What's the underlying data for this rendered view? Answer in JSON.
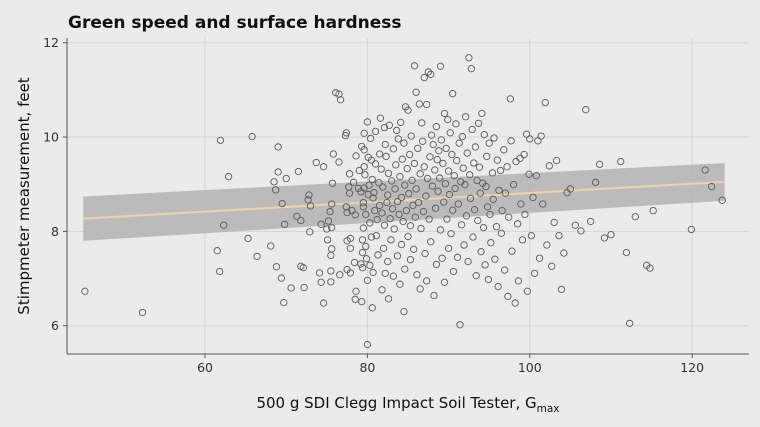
{
  "chart_data": {
    "type": "scatter",
    "title": "Green speed and surface hardness",
    "xlabel": "500 g SDI Clegg Impact Soil Tester, G",
    "xlabel_subscript": "max",
    "ylabel": "Stimpmeter measurement, feet",
    "xlim": [
      43,
      127
    ],
    "ylim": [
      5.4,
      12.1
    ],
    "x_ticks": [
      60,
      80,
      100,
      120
    ],
    "y_ticks": [
      6,
      8,
      10,
      12
    ],
    "grid": true,
    "trend": {
      "x": [
        45,
        124
      ],
      "y": [
        8.27,
        9.05
      ],
      "ci_start": [
        7.8,
        8.74
      ],
      "ci_end": [
        8.65,
        9.45
      ]
    },
    "colors": {
      "background": "#ebebeb",
      "grid": "#d6d6d6",
      "point": "#5a5a5a",
      "trend": "#f0d3a3",
      "ci": "#b3b3b3"
    },
    "points": [
      {
        "x": 45.2,
        "y": 6.73
      },
      {
        "x": 52.3,
        "y": 6.28
      },
      {
        "x": 61.5,
        "y": 7.59
      },
      {
        "x": 61.8,
        "y": 7.15
      },
      {
        "x": 61.9,
        "y": 9.93
      },
      {
        "x": 62.3,
        "y": 8.13
      },
      {
        "x": 62.9,
        "y": 9.16
      },
      {
        "x": 65.3,
        "y": 7.85
      },
      {
        "x": 65.8,
        "y": 10.01
      },
      {
        "x": 66.4,
        "y": 7.47
      },
      {
        "x": 68.1,
        "y": 7.69
      },
      {
        "x": 68.5,
        "y": 9.05
      },
      {
        "x": 68.7,
        "y": 8.88
      },
      {
        "x": 68.8,
        "y": 7.25
      },
      {
        "x": 69.0,
        "y": 9.79
      },
      {
        "x": 69.0,
        "y": 9.26
      },
      {
        "x": 69.4,
        "y": 7.01
      },
      {
        "x": 69.5,
        "y": 8.59
      },
      {
        "x": 69.7,
        "y": 6.49
      },
      {
        "x": 69.8,
        "y": 8.15
      },
      {
        "x": 70.0,
        "y": 9.12
      },
      {
        "x": 70.6,
        "y": 6.8
      },
      {
        "x": 71.3,
        "y": 8.32
      },
      {
        "x": 71.5,
        "y": 9.27
      },
      {
        "x": 71.8,
        "y": 8.23
      },
      {
        "x": 71.8,
        "y": 7.26
      },
      {
        "x": 72.1,
        "y": 7.23
      },
      {
        "x": 72.2,
        "y": 6.81
      },
      {
        "x": 72.7,
        "y": 8.67
      },
      {
        "x": 72.8,
        "y": 8.77
      },
      {
        "x": 72.9,
        "y": 7.99
      },
      {
        "x": 73.0,
        "y": 8.54
      },
      {
        "x": 73.7,
        "y": 9.46
      },
      {
        "x": 74.1,
        "y": 7.12
      },
      {
        "x": 74.3,
        "y": 8.15
      },
      {
        "x": 74.3,
        "y": 6.92
      },
      {
        "x": 74.6,
        "y": 9.37
      },
      {
        "x": 74.6,
        "y": 6.48
      },
      {
        "x": 75.0,
        "y": 8.05
      },
      {
        "x": 75.1,
        "y": 7.82
      },
      {
        "x": 75.2,
        "y": 8.22
      },
      {
        "x": 75.4,
        "y": 8.42
      },
      {
        "x": 75.5,
        "y": 7.49
      },
      {
        "x": 75.5,
        "y": 7.16
      },
      {
        "x": 75.5,
        "y": 6.93
      },
      {
        "x": 75.6,
        "y": 8.58
      },
      {
        "x": 75.6,
        "y": 8.08
      },
      {
        "x": 75.6,
        "y": 7.63
      },
      {
        "x": 75.7,
        "y": 9.02
      },
      {
        "x": 75.8,
        "y": 9.64
      },
      {
        "x": 76.1,
        "y": 10.94
      },
      {
        "x": 76.5,
        "y": 10.91
      },
      {
        "x": 76.5,
        "y": 9.47
      },
      {
        "x": 76.6,
        "y": 7.08
      },
      {
        "x": 76.7,
        "y": 10.79
      },
      {
        "x": 77.3,
        "y": 10.03
      },
      {
        "x": 77.4,
        "y": 10.09
      },
      {
        "x": 77.4,
        "y": 8.52
      },
      {
        "x": 77.5,
        "y": 7.8
      },
      {
        "x": 77.5,
        "y": 8.4
      },
      {
        "x": 77.5,
        "y": 7.19
      },
      {
        "x": 77.7,
        "y": 8.94
      },
      {
        "x": 77.8,
        "y": 9.22
      },
      {
        "x": 77.8,
        "y": 8.81
      },
      {
        "x": 77.9,
        "y": 7.85
      },
      {
        "x": 77.9,
        "y": 7.64
      },
      {
        "x": 77.9,
        "y": 7.12
      },
      {
        "x": 78.1,
        "y": 8.44
      },
      {
        "x": 78.3,
        "y": 9.04
      },
      {
        "x": 78.4,
        "y": 7.34
      },
      {
        "x": 78.5,
        "y": 8.35
      },
      {
        "x": 78.5,
        "y": 6.56
      },
      {
        "x": 78.6,
        "y": 9.6
      },
      {
        "x": 78.6,
        "y": 6.73
      },
      {
        "x": 78.9,
        "y": 8.91
      },
      {
        "x": 79.0,
        "y": 9.29
      },
      {
        "x": 79.2,
        "y": 8.84
      },
      {
        "x": 79.2,
        "y": 7.31
      },
      {
        "x": 79.3,
        "y": 9.8
      },
      {
        "x": 79.3,
        "y": 6.51
      },
      {
        "x": 79.4,
        "y": 7.82
      },
      {
        "x": 79.4,
        "y": 7.55
      },
      {
        "x": 79.4,
        "y": 7.23
      },
      {
        "x": 79.5,
        "y": 8.61
      },
      {
        "x": 79.5,
        "y": 8.52
      },
      {
        "x": 79.5,
        "y": 8.07
      },
      {
        "x": 79.6,
        "y": 10.08
      },
      {
        "x": 79.6,
        "y": 9.73
      },
      {
        "x": 79.6,
        "y": 9.37
      },
      {
        "x": 79.6,
        "y": 8.92
      },
      {
        "x": 79.7,
        "y": 9.2
      },
      {
        "x": 79.8,
        "y": 8.36
      },
      {
        "x": 79.8,
        "y": 7.68
      },
      {
        "x": 79.9,
        "y": 7.42
      },
      {
        "x": 80.0,
        "y": 10.32
      },
      {
        "x": 80.0,
        "y": 6.96
      },
      {
        "x": 80.0,
        "y": 5.6
      },
      {
        "x": 80.1,
        "y": 9.57
      },
      {
        "x": 80.1,
        "y": 8.78
      },
      {
        "x": 80.2,
        "y": 8.98
      },
      {
        "x": 80.3,
        "y": 8.18
      },
      {
        "x": 80.3,
        "y": 7.28
      },
      {
        "x": 80.4,
        "y": 9.97
      },
      {
        "x": 80.5,
        "y": 9.51
      },
      {
        "x": 80.5,
        "y": 7.88
      },
      {
        "x": 80.6,
        "y": 9.1
      },
      {
        "x": 80.6,
        "y": 6.38
      },
      {
        "x": 80.7,
        "y": 8.71
      },
      {
        "x": 80.7,
        "y": 7.13
      },
      {
        "x": 80.8,
        "y": 8.82
      },
      {
        "x": 80.9,
        "y": 8.44
      },
      {
        "x": 81.0,
        "y": 10.12
      },
      {
        "x": 81.0,
        "y": 9.43
      },
      {
        "x": 81.1,
        "y": 7.91
      },
      {
        "x": 81.2,
        "y": 8.25
      },
      {
        "x": 81.3,
        "y": 7.5
      },
      {
        "x": 81.4,
        "y": 9.03
      },
      {
        "x": 81.5,
        "y": 9.64
      },
      {
        "x": 81.5,
        "y": 8.55
      },
      {
        "x": 81.6,
        "y": 10.4
      },
      {
        "x": 81.7,
        "y": 9.32
      },
      {
        "x": 81.8,
        "y": 8.39
      },
      {
        "x": 81.8,
        "y": 6.76
      },
      {
        "x": 81.9,
        "y": 8.94
      },
      {
        "x": 82.0,
        "y": 7.64
      },
      {
        "x": 82.1,
        "y": 10.2
      },
      {
        "x": 82.1,
        "y": 8.13
      },
      {
        "x": 82.2,
        "y": 9.84
      },
      {
        "x": 82.2,
        "y": 7.11
      },
      {
        "x": 82.3,
        "y": 9.59
      },
      {
        "x": 82.4,
        "y": 8.61
      },
      {
        "x": 82.5,
        "y": 8.77
      },
      {
        "x": 82.5,
        "y": 7.36
      },
      {
        "x": 82.6,
        "y": 9.23
      },
      {
        "x": 82.6,
        "y": 6.57
      },
      {
        "x": 82.7,
        "y": 10.25
      },
      {
        "x": 82.8,
        "y": 8.27
      },
      {
        "x": 82.9,
        "y": 7.82
      },
      {
        "x": 83.0,
        "y": 9.07
      },
      {
        "x": 83.1,
        "y": 8.48
      },
      {
        "x": 83.2,
        "y": 9.75
      },
      {
        "x": 83.2,
        "y": 7.05
      },
      {
        "x": 83.3,
        "y": 8.05
      },
      {
        "x": 83.4,
        "y": 8.9
      },
      {
        "x": 83.5,
        "y": 9.41
      },
      {
        "x": 83.6,
        "y": 10.14
      },
      {
        "x": 83.7,
        "y": 8.63
      },
      {
        "x": 83.7,
        "y": 7.48
      },
      {
        "x": 83.8,
        "y": 9.96
      },
      {
        "x": 83.9,
        "y": 8.36
      },
      {
        "x": 84.0,
        "y": 9.16
      },
      {
        "x": 84.0,
        "y": 6.88
      },
      {
        "x": 84.1,
        "y": 10.31
      },
      {
        "x": 84.2,
        "y": 8.72
      },
      {
        "x": 84.2,
        "y": 7.72
      },
      {
        "x": 84.3,
        "y": 9.53
      },
      {
        "x": 84.4,
        "y": 8.21
      },
      {
        "x": 84.5,
        "y": 9.87
      },
      {
        "x": 84.5,
        "y": 6.3
      },
      {
        "x": 84.6,
        "y": 8.98
      },
      {
        "x": 84.6,
        "y": 7.2
      },
      {
        "x": 84.7,
        "y": 10.64
      },
      {
        "x": 84.8,
        "y": 8.44
      },
      {
        "x": 84.9,
        "y": 9.33
      },
      {
        "x": 85.0,
        "y": 7.89
      },
      {
        "x": 85.0,
        "y": 10.57
      },
      {
        "x": 85.1,
        "y": 8.8
      },
      {
        "x": 85.2,
        "y": 9.63
      },
      {
        "x": 85.3,
        "y": 8.12
      },
      {
        "x": 85.3,
        "y": 7.4
      },
      {
        "x": 85.4,
        "y": 10.02
      },
      {
        "x": 85.5,
        "y": 9.08
      },
      {
        "x": 85.6,
        "y": 8.55
      },
      {
        "x": 85.7,
        "y": 7.62
      },
      {
        "x": 85.8,
        "y": 9.44
      },
      {
        "x": 85.8,
        "y": 11.51
      },
      {
        "x": 85.9,
        "y": 8.3
      },
      {
        "x": 86.0,
        "y": 10.95
      },
      {
        "x": 86.0,
        "y": 8.9
      },
      {
        "x": 86.1,
        "y": 7.08
      },
      {
        "x": 86.2,
        "y": 9.76
      },
      {
        "x": 86.3,
        "y": 8.61
      },
      {
        "x": 86.4,
        "y": 10.7
      },
      {
        "x": 86.5,
        "y": 9.22
      },
      {
        "x": 86.5,
        "y": 6.78
      },
      {
        "x": 86.6,
        "y": 8.06
      },
      {
        "x": 86.7,
        "y": 10.3
      },
      {
        "x": 86.8,
        "y": 9.91
      },
      {
        "x": 86.9,
        "y": 8.42
      },
      {
        "x": 87.0,
        "y": 11.26
      },
      {
        "x": 87.0,
        "y": 9.37
      },
      {
        "x": 87.1,
        "y": 7.53
      },
      {
        "x": 87.2,
        "y": 8.75
      },
      {
        "x": 87.3,
        "y": 10.69
      },
      {
        "x": 87.3,
        "y": 6.95
      },
      {
        "x": 87.4,
        "y": 9.12
      },
      {
        "x": 87.5,
        "y": 11.38
      },
      {
        "x": 87.6,
        "y": 8.26
      },
      {
        "x": 87.7,
        "y": 9.58
      },
      {
        "x": 87.8,
        "y": 11.33
      },
      {
        "x": 87.8,
        "y": 7.78
      },
      {
        "x": 87.9,
        "y": 10.04
      },
      {
        "x": 88.0,
        "y": 8.96
      },
      {
        "x": 88.1,
        "y": 9.84
      },
      {
        "x": 88.2,
        "y": 6.64
      },
      {
        "x": 88.3,
        "y": 9.3
      },
      {
        "x": 88.4,
        "y": 8.49
      },
      {
        "x": 88.5,
        "y": 10.22
      },
      {
        "x": 88.5,
        "y": 7.3
      },
      {
        "x": 88.6,
        "y": 9.52
      },
      {
        "x": 88.7,
        "y": 8.85
      },
      {
        "x": 88.8,
        "y": 9.71
      },
      {
        "x": 88.9,
        "y": 9.13
      },
      {
        "x": 89.0,
        "y": 11.5
      },
      {
        "x": 89.0,
        "y": 8.03
      },
      {
        "x": 89.1,
        "y": 9.94
      },
      {
        "x": 89.2,
        "y": 7.43
      },
      {
        "x": 89.3,
        "y": 9.44
      },
      {
        "x": 89.4,
        "y": 8.62
      },
      {
        "x": 89.5,
        "y": 10.5
      },
      {
        "x": 89.5,
        "y": 6.92
      },
      {
        "x": 89.6,
        "y": 9.01
      },
      {
        "x": 89.7,
        "y": 9.76
      },
      {
        "x": 89.8,
        "y": 8.26
      },
      {
        "x": 89.9,
        "y": 10.37
      },
      {
        "x": 90.0,
        "y": 9.28
      },
      {
        "x": 90.0,
        "y": 7.64
      },
      {
        "x": 90.1,
        "y": 8.78
      },
      {
        "x": 90.2,
        "y": 10.09
      },
      {
        "x": 90.3,
        "y": 7.95
      },
      {
        "x": 90.4,
        "y": 9.63
      },
      {
        "x": 90.5,
        "y": 10.92
      },
      {
        "x": 90.5,
        "y": 8.45
      },
      {
        "x": 90.6,
        "y": 7.15
      },
      {
        "x": 90.7,
        "y": 9.18
      },
      {
        "x": 90.8,
        "y": 8.91
      },
      {
        "x": 90.9,
        "y": 10.28
      },
      {
        "x": 91.0,
        "y": 9.5
      },
      {
        "x": 91.1,
        "y": 7.45
      },
      {
        "x": 91.2,
        "y": 8.58
      },
      {
        "x": 91.3,
        "y": 9.87
      },
      {
        "x": 91.4,
        "y": 6.02
      },
      {
        "x": 91.5,
        "y": 9.05
      },
      {
        "x": 91.6,
        "y": 8.14
      },
      {
        "x": 91.7,
        "y": 10.01
      },
      {
        "x": 91.8,
        "y": 9.34
      },
      {
        "x": 91.9,
        "y": 7.71
      },
      {
        "x": 92.0,
        "y": 8.99
      },
      {
        "x": 92.1,
        "y": 10.43
      },
      {
        "x": 92.2,
        "y": 8.33
      },
      {
        "x": 92.3,
        "y": 9.66
      },
      {
        "x": 92.4,
        "y": 7.36
      },
      {
        "x": 92.5,
        "y": 11.68
      },
      {
        "x": 92.6,
        "y": 9.2
      },
      {
        "x": 92.7,
        "y": 8.7
      },
      {
        "x": 92.8,
        "y": 11.45
      },
      {
        "x": 92.9,
        "y": 10.16
      },
      {
        "x": 93.0,
        "y": 7.88
      },
      {
        "x": 93.1,
        "y": 9.45
      },
      {
        "x": 93.2,
        "y": 8.46
      },
      {
        "x": 93.3,
        "y": 9.79
      },
      {
        "x": 93.4,
        "y": 7.06
      },
      {
        "x": 93.5,
        "y": 9.08
      },
      {
        "x": 93.6,
        "y": 8.23
      },
      {
        "x": 93.7,
        "y": 10.29
      },
      {
        "x": 93.8,
        "y": 9.36
      },
      {
        "x": 93.9,
        "y": 8.81
      },
      {
        "x": 94.0,
        "y": 7.57
      },
      {
        "x": 94.1,
        "y": 10.5
      },
      {
        "x": 94.2,
        "y": 9.02
      },
      {
        "x": 94.3,
        "y": 8.08
      },
      {
        "x": 94.4,
        "y": 10.05
      },
      {
        "x": 94.5,
        "y": 7.29
      },
      {
        "x": 94.6,
        "y": 8.95
      },
      {
        "x": 94.7,
        "y": 9.59
      },
      {
        "x": 94.8,
        "y": 8.52
      },
      {
        "x": 94.9,
        "y": 6.98
      },
      {
        "x": 95.0,
        "y": 9.87
      },
      {
        "x": 95.1,
        "y": 8.36
      },
      {
        "x": 95.2,
        "y": 7.76
      },
      {
        "x": 95.4,
        "y": 9.24
      },
      {
        "x": 95.5,
        "y": 8.68
      },
      {
        "x": 95.6,
        "y": 9.98
      },
      {
        "x": 95.7,
        "y": 7.41
      },
      {
        "x": 95.9,
        "y": 8.1
      },
      {
        "x": 96.0,
        "y": 9.51
      },
      {
        "x": 96.1,
        "y": 6.83
      },
      {
        "x": 96.2,
        "y": 8.87
      },
      {
        "x": 96.4,
        "y": 9.29
      },
      {
        "x": 96.5,
        "y": 7.96
      },
      {
        "x": 96.6,
        "y": 8.44
      },
      {
        "x": 96.8,
        "y": 9.73
      },
      {
        "x": 96.9,
        "y": 7.18
      },
      {
        "x": 97.0,
        "y": 8.81
      },
      {
        "x": 97.2,
        "y": 9.37
      },
      {
        "x": 97.3,
        "y": 6.62
      },
      {
        "x": 97.4,
        "y": 8.3
      },
      {
        "x": 97.6,
        "y": 10.81
      },
      {
        "x": 97.7,
        "y": 9.92
      },
      {
        "x": 97.8,
        "y": 7.58
      },
      {
        "x": 98.0,
        "y": 8.99
      },
      {
        "x": 98.2,
        "y": 6.48
      },
      {
        "x": 98.3,
        "y": 9.48
      },
      {
        "x": 98.5,
        "y": 8.16
      },
      {
        "x": 98.6,
        "y": 6.95
      },
      {
        "x": 98.8,
        "y": 9.55
      },
      {
        "x": 98.9,
        "y": 8.58
      },
      {
        "x": 99.1,
        "y": 7.82
      },
      {
        "x": 99.3,
        "y": 9.63
      },
      {
        "x": 99.4,
        "y": 8.36
      },
      {
        "x": 99.6,
        "y": 10.06
      },
      {
        "x": 99.7,
        "y": 6.73
      },
      {
        "x": 99.9,
        "y": 9.21
      },
      {
        "x": 100.0,
        "y": 9.96
      },
      {
        "x": 100.2,
        "y": 7.91
      },
      {
        "x": 100.4,
        "y": 8.72
      },
      {
        "x": 100.6,
        "y": 7.11
      },
      {
        "x": 100.8,
        "y": 9.18
      },
      {
        "x": 101.0,
        "y": 9.92
      },
      {
        "x": 101.2,
        "y": 7.43
      },
      {
        "x": 101.4,
        "y": 10.02
      },
      {
        "x": 101.6,
        "y": 8.58
      },
      {
        "x": 101.9,
        "y": 10.73
      },
      {
        "x": 102.1,
        "y": 7.71
      },
      {
        "x": 102.4,
        "y": 9.39
      },
      {
        "x": 102.7,
        "y": 7.26
      },
      {
        "x": 103.0,
        "y": 8.19
      },
      {
        "x": 103.3,
        "y": 9.5
      },
      {
        "x": 103.6,
        "y": 7.91
      },
      {
        "x": 103.9,
        "y": 6.77
      },
      {
        "x": 104.2,
        "y": 7.54
      },
      {
        "x": 104.6,
        "y": 8.82
      },
      {
        "x": 105.0,
        "y": 8.9
      },
      {
        "x": 105.6,
        "y": 8.13
      },
      {
        "x": 106.3,
        "y": 8.01
      },
      {
        "x": 106.9,
        "y": 10.58
      },
      {
        "x": 107.5,
        "y": 8.21
      },
      {
        "x": 108.1,
        "y": 9.04
      },
      {
        "x": 108.6,
        "y": 9.42
      },
      {
        "x": 109.2,
        "y": 7.86
      },
      {
        "x": 110.0,
        "y": 7.93
      },
      {
        "x": 111.2,
        "y": 9.48
      },
      {
        "x": 111.9,
        "y": 7.55
      },
      {
        "x": 112.3,
        "y": 6.05
      },
      {
        "x": 113.0,
        "y": 8.31
      },
      {
        "x": 114.4,
        "y": 7.28
      },
      {
        "x": 114.8,
        "y": 7.22
      },
      {
        "x": 115.2,
        "y": 8.44
      },
      {
        "x": 119.9,
        "y": 8.04
      },
      {
        "x": 121.6,
        "y": 9.3
      },
      {
        "x": 122.4,
        "y": 8.95
      },
      {
        "x": 123.7,
        "y": 8.66
      }
    ]
  }
}
